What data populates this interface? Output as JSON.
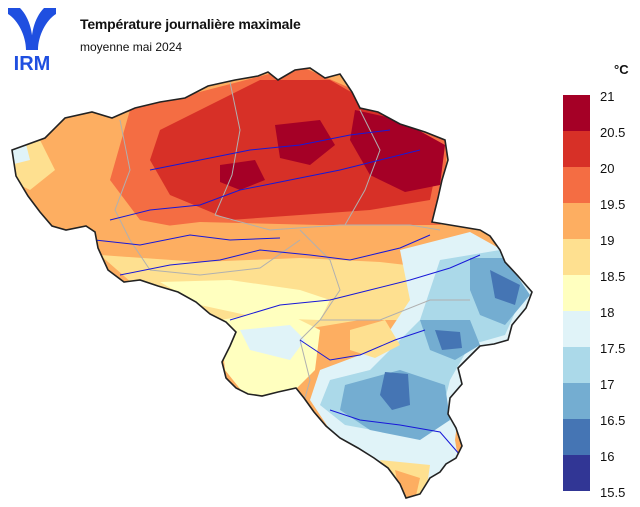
{
  "header": {
    "title": "Température journalière maximale",
    "subtitle": "moyenne mai 2024"
  },
  "logo": {
    "text": "IRM",
    "color": "#1f4fe0"
  },
  "legend": {
    "unit": "°C",
    "ticks": [
      "21",
      "20.5",
      "20",
      "19.5",
      "19",
      "18.5",
      "18",
      "17.5",
      "17",
      "16.5",
      "16",
      "15.5"
    ],
    "colors": [
      "#a50026",
      "#d73027",
      "#f46d43",
      "#fdae61",
      "#fee090",
      "#ffffbf",
      "#e0f3f8",
      "#abd9e9",
      "#74add1",
      "#4575b4",
      "#313695"
    ]
  }
}
